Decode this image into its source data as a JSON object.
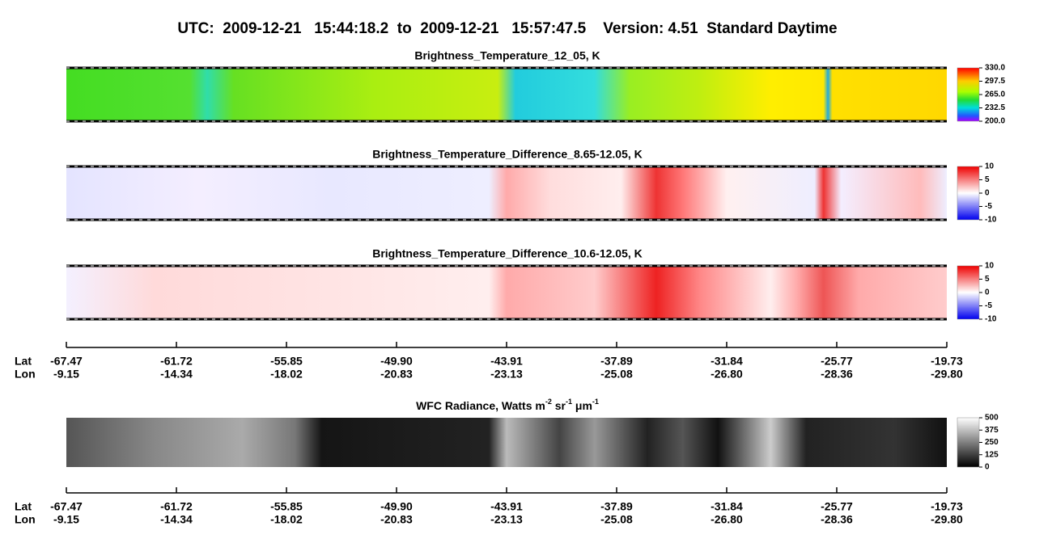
{
  "header": {
    "title": "UTC:  2009-12-21   15:44:18.2  to  2009-12-21   15:57:47.5    Version: 4.51  Standard Daytime"
  },
  "panels": [
    {
      "title": "Brightness_Temperature_12_05, K",
      "colorbar": [
        "330.0",
        "297.5",
        "265.0",
        "232.5",
        "200.0"
      ]
    },
    {
      "title": "Brightness_Temperature_Difference_8.65-12.05, K",
      "colorbar": [
        "10",
        "5",
        "0",
        "-5",
        "-10"
      ]
    },
    {
      "title": "Brightness_Temperature_Difference_10.6-12.05, K",
      "colorbar": [
        "10",
        "5",
        "0",
        "-5",
        "-10"
      ]
    },
    {
      "title_parts": [
        {
          "text": "WFC Radiance, Watts m",
          "sup": false
        },
        {
          "text": "-2",
          "sup": true
        },
        {
          "text": " sr",
          "sup": false
        },
        {
          "text": "-1",
          "sup": true
        },
        {
          "text": " μm",
          "sup": false
        },
        {
          "text": "-1",
          "sup": true
        }
      ],
      "colorbar": [
        "500",
        "375",
        "250",
        "125",
        "0"
      ]
    }
  ],
  "axes": [
    {
      "lat_label": "Lat",
      "lon_label": "Lon",
      "lat": [
        "-67.47",
        "-61.72",
        "-55.85",
        "-49.90",
        "-43.91",
        "-37.89",
        "-31.84",
        "-25.77",
        "-19.73"
      ],
      "lon": [
        "-9.15",
        "-14.34",
        "-18.02",
        "-20.83",
        "-23.13",
        "-25.08",
        "-26.80",
        "-28.36",
        "-29.80"
      ]
    },
    {
      "lat_label": "Lat",
      "lon_label": "Lon",
      "lat": [
        "-67.47",
        "-61.72",
        "-55.85",
        "-49.90",
        "-43.91",
        "-37.89",
        "-31.84",
        "-25.77",
        "-19.73"
      ],
      "lon": [
        "-9.15",
        "-14.34",
        "-18.02",
        "-20.83",
        "-23.13",
        "-25.08",
        "-26.80",
        "-28.36",
        "-29.80"
      ]
    }
  ]
}
